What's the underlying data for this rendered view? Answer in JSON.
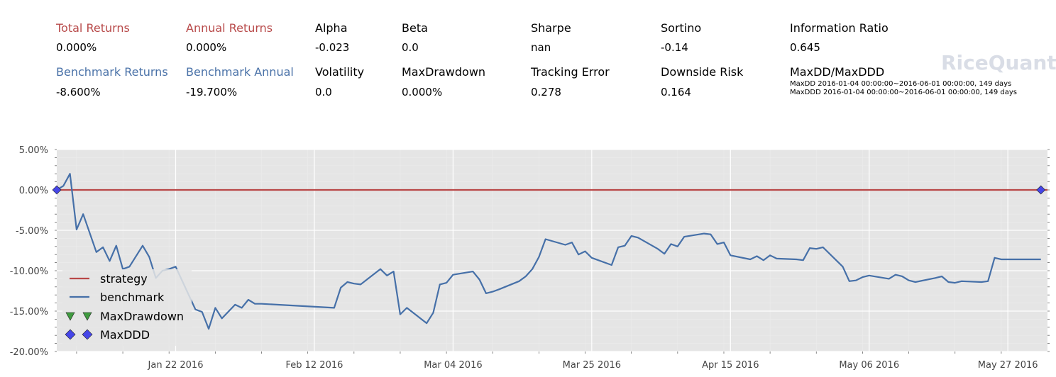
{
  "summary": {
    "row1": [
      {
        "label": "Total Returns",
        "value": "0.000%",
        "color": "red"
      },
      {
        "label": "Annual Returns",
        "value": "0.000%",
        "color": "red"
      },
      {
        "label": "Alpha",
        "value": "-0.023",
        "color": "black"
      },
      {
        "label": "Beta",
        "value": "0.0",
        "color": "black"
      },
      {
        "label": "Sharpe",
        "value": "nan",
        "color": "black"
      },
      {
        "label": "Sortino",
        "value": "-0.14",
        "color": "black"
      },
      {
        "label": "Information Ratio",
        "value": "0.645",
        "color": "black"
      }
    ],
    "row2": [
      {
        "label": "Benchmark Returns",
        "value": "-8.600%",
        "color": "blue"
      },
      {
        "label": "Benchmark Annual",
        "value": "-19.700%",
        "color": "blue"
      },
      {
        "label": "Volatility",
        "value": "0.0",
        "color": "black"
      },
      {
        "label": "MaxDrawdown",
        "value": "0.000%",
        "color": "black"
      },
      {
        "label": "Tracking Error",
        "value": "0.278",
        "color": "black"
      },
      {
        "label": "Downside Risk",
        "value": "0.164",
        "color": "black"
      },
      {
        "label": "MaxDD/MaxDDD",
        "value": "",
        "color": "black"
      }
    ],
    "maxdd_line": "MaxDD  2016-01-04 00:00:00~2016-06-01 00:00:00, 149 days",
    "maxddd_line": "MaxDDD 2016-01-04 00:00:00~2016-06-01 00:00:00, 149 days",
    "logo": "RiceQuant"
  },
  "chart_data": {
    "type": "line",
    "y_ticks": [
      "5.00%",
      "0.00%",
      "-5.00%",
      "-10.00%",
      "-15.00%",
      "-20.00%"
    ],
    "y_tick_values": [
      5,
      0,
      -5,
      -10,
      -15,
      -20
    ],
    "ylim": [
      -20,
      5
    ],
    "x_tick_labels": [
      "Jan 22 2016",
      "Feb 12 2016",
      "Mar 04 2016",
      "Mar 25 2016",
      "Apr 15 2016",
      "May 06 2016",
      "May 27 2016"
    ],
    "x_tick_days": [
      18,
      39,
      60,
      81,
      102,
      123,
      144
    ],
    "xlim_days": [
      0,
      150
    ],
    "x_origin": "2016-01-04",
    "grid": true,
    "legend_position": "lower-left",
    "legend": [
      "strategy",
      "benchmark",
      "MaxDrawdown",
      "MaxDDD"
    ],
    "colors": {
      "strategy": "#b94848",
      "benchmark": "#4670a8",
      "maxdrawdown": "#3f9b3f",
      "maxddd": "#4646e8",
      "plot_bg": "#e5e5e5"
    },
    "series": [
      {
        "name": "strategy",
        "x": [
          0,
          150
        ],
        "y": [
          0,
          0
        ]
      },
      {
        "name": "benchmark",
        "x": [
          0,
          1,
          2,
          3,
          4,
          6,
          7,
          8,
          9,
          10,
          11,
          13,
          14,
          15,
          16,
          17,
          18,
          21,
          22,
          23,
          24,
          25,
          27,
          28,
          29,
          30,
          31,
          42,
          43,
          44,
          45,
          46,
          49,
          50,
          51,
          52,
          53,
          56,
          57,
          58,
          59,
          60,
          63,
          64,
          65,
          66,
          67,
          70,
          71,
          72,
          73,
          74,
          77,
          78,
          79,
          80,
          81,
          84,
          85,
          86,
          87,
          88,
          91,
          92,
          93,
          94,
          95,
          98,
          99,
          100,
          101,
          102,
          105,
          106,
          107,
          108,
          109,
          112,
          113,
          114,
          115,
          116,
          119,
          120,
          121,
          122,
          123,
          126,
          127,
          128,
          129,
          130,
          133,
          134,
          135,
          136,
          137,
          140,
          141,
          142,
          143,
          144,
          147,
          148,
          149
        ],
        "y": [
          0,
          0.5,
          2.0,
          -4.9,
          -3.0,
          -7.7,
          -7.1,
          -8.8,
          -6.9,
          -9.8,
          -9.5,
          -6.9,
          -8.3,
          -10.9,
          -10.0,
          -9.8,
          -9.5,
          -14.8,
          -15.1,
          -17.2,
          -14.6,
          -15.9,
          -14.2,
          -14.6,
          -13.6,
          -14.1,
          -14.1,
          -14.6,
          -12.1,
          -11.4,
          -11.6,
          -11.7,
          -9.8,
          -10.6,
          -10.1,
          -15.4,
          -14.6,
          -16.5,
          -15.2,
          -11.7,
          -11.5,
          -10.5,
          -10.1,
          -11.1,
          -12.8,
          -12.6,
          -12.3,
          -11.3,
          -10.7,
          -9.8,
          -8.3,
          -6.1,
          -6.8,
          -6.5,
          -8.0,
          -7.6,
          -8.4,
          -9.3,
          -7.1,
          -6.9,
          -5.7,
          -5.9,
          -7.3,
          -7.9,
          -6.7,
          -7.0,
          -5.8,
          -5.4,
          -5.5,
          -6.7,
          -6.5,
          -8.1,
          -8.6,
          -8.2,
          -8.7,
          -8.1,
          -8.5,
          -8.6,
          -8.7,
          -7.2,
          -7.3,
          -7.1,
          -9.5,
          -11.3,
          -11.2,
          -10.8,
          -10.6,
          -11.0,
          -10.5,
          -10.7,
          -11.2,
          -11.4,
          -10.9,
          -10.7,
          -11.4,
          -11.5,
          -11.3,
          -11.4,
          -11.3,
          -8.4,
          -8.6,
          -8.6,
          -8.6,
          -8.6,
          -8.6
        ],
        "x_actual_note": "benchmark series"
      }
    ],
    "maxdrawdown_points": [],
    "maxddd_points": [
      {
        "x": 0,
        "y": 0
      },
      {
        "x": 149,
        "y": 0
      }
    ]
  }
}
